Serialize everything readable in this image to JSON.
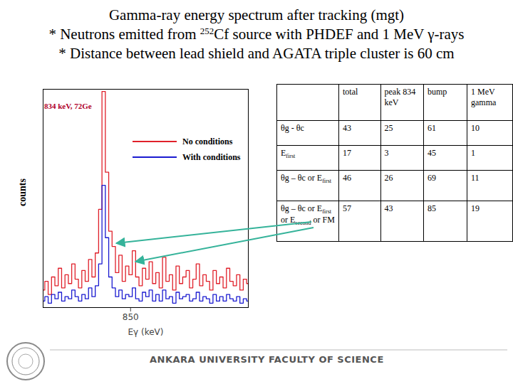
{
  "chart_data": {
    "type": "line",
    "line_style": "step",
    "xlabel": "Eγ (keV)",
    "ylabel": "counts",
    "annotations": [
      "834 keV, 72Ge"
    ],
    "legend": "upper right",
    "tick_labels": "x",
    "xlim": [
      798,
      920
    ],
    "xticks": [
      850
    ],
    "ylim": [
      0,
      100
    ],
    "x": [
      798,
      800,
      802,
      804,
      806,
      808,
      810,
      812,
      814,
      816,
      818,
      820,
      822,
      824,
      826,
      828,
      830,
      832,
      834,
      836,
      838,
      840,
      842,
      844,
      846,
      848,
      850,
      852,
      854,
      856,
      858,
      860,
      862,
      864,
      866,
      868,
      870,
      872,
      874,
      876,
      878,
      880,
      882,
      884,
      886,
      888,
      890,
      892,
      894,
      896,
      898,
      900,
      902,
      904,
      906,
      908,
      910,
      912,
      914,
      916,
      918,
      920
    ],
    "series": [
      {
        "name": "No conditions",
        "color": "#e0202a",
        "values": [
          8,
          12,
          6,
          14,
          10,
          18,
          9,
          15,
          11,
          20,
          13,
          9,
          17,
          12,
          22,
          14,
          25,
          45,
          99,
          62,
          35,
          28,
          16,
          24,
          12,
          19,
          15,
          26,
          14,
          10,
          18,
          13,
          21,
          11,
          16,
          9,
          23,
          12,
          15,
          8,
          19,
          11,
          14,
          17,
          9,
          13,
          20,
          10,
          15,
          12,
          8,
          17,
          11,
          14,
          9,
          18,
          12,
          10,
          15,
          8,
          13,
          11
        ]
      },
      {
        "name": "With conditions",
        "color": "#1a1ad0",
        "values": [
          3,
          5,
          2,
          6,
          4,
          7,
          3,
          5,
          4,
          8,
          5,
          3,
          6,
          4,
          9,
          5,
          10,
          20,
          56,
          32,
          14,
          9,
          5,
          8,
          4,
          6,
          5,
          9,
          4,
          3,
          7,
          5,
          8,
          3,
          6,
          3,
          8,
          4,
          5,
          2,
          7,
          4,
          5,
          6,
          3,
          4,
          7,
          3,
          5,
          4,
          2,
          6,
          3,
          5,
          3,
          6,
          4,
          3,
          5,
          2,
          4,
          3
        ]
      }
    ]
  },
  "slide": {
    "title": [
      [
        {
          "t": "Gamma-ray energy spectrum after tracking (mgt)"
        }
      ],
      [
        {
          "t": "* Neutrons emitted from "
        },
        {
          "sup": "252"
        },
        {
          "t": "Cf source with PHDEF and 1 MeV γ-rays"
        }
      ],
      [
        {
          "t": "* Distance between lead shield and AGATA triple cluster is 60 cm"
        }
      ]
    ],
    "table": {
      "header": [
        "total",
        "peak 834 keV",
        "bump",
        "1 MeV gamma"
      ],
      "rows": [
        {
          "label": [
            {
              "t": "θg - θc"
            }
          ],
          "values": [
            43,
            25,
            61,
            10
          ]
        },
        {
          "label": [
            {
              "t": "E"
            },
            {
              "sub": "first"
            }
          ],
          "values": [
            17,
            3,
            45,
            1
          ]
        },
        {
          "label": [
            {
              "t": "θg – θc or E"
            },
            {
              "sub": "first"
            }
          ],
          "values": [
            46,
            26,
            69,
            11
          ]
        },
        {
          "label": [
            {
              "t": "θg – θc or E"
            },
            {
              "sub": "first"
            },
            {
              "t": " or E"
            },
            {
              "sub": "second"
            },
            {
              "t": " or FM"
            }
          ],
          "values": [
            57,
            43,
            85,
            19
          ]
        }
      ]
    },
    "footer": "ANKARA UNIVERSITY FACULTY OF SCIENCE"
  }
}
